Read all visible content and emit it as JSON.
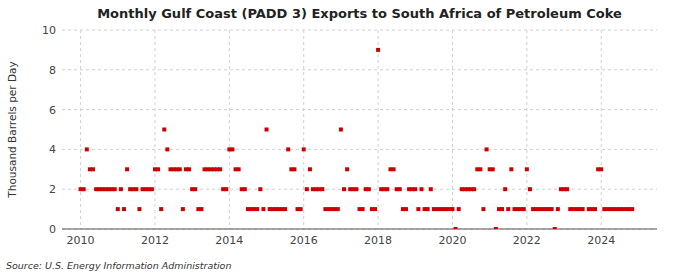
{
  "chart_data": {
    "type": "scatter",
    "title": "Monthly Gulf Coast (PADD 3) Exports to South Africa of Petroleum Coke",
    "ylabel": "Thousand Barrels per Day",
    "source": "Source: U.S. Energy Information Administration",
    "color": "#cc0000",
    "marker": "square",
    "grid": true,
    "xlim": [
      2009.5,
      2025.5
    ],
    "xticks": [
      2010,
      2012,
      2014,
      2016,
      2018,
      2020,
      2022,
      2024
    ],
    "ylim": [
      0,
      10
    ],
    "yticks": [
      0,
      2,
      4,
      6,
      8,
      10
    ],
    "x": [
      2010.0,
      2010.083,
      2010.167,
      2010.25,
      2010.333,
      2010.417,
      2010.5,
      2010.583,
      2010.667,
      2010.75,
      2010.833,
      2010.917,
      2011.0,
      2011.083,
      2011.167,
      2011.25,
      2011.333,
      2011.417,
      2011.5,
      2011.583,
      2011.667,
      2011.75,
      2011.833,
      2011.917,
      2012.0,
      2012.083,
      2012.167,
      2012.25,
      2012.333,
      2012.417,
      2012.5,
      2012.583,
      2012.667,
      2012.75,
      2012.833,
      2012.917,
      2013.0,
      2013.083,
      2013.167,
      2013.25,
      2013.333,
      2013.417,
      2013.5,
      2013.583,
      2013.667,
      2013.75,
      2013.833,
      2013.917,
      2014.0,
      2014.083,
      2014.167,
      2014.25,
      2014.333,
      2014.417,
      2014.5,
      2014.583,
      2014.667,
      2014.75,
      2014.833,
      2014.917,
      2015.0,
      2015.083,
      2015.167,
      2015.25,
      2015.333,
      2015.417,
      2015.5,
      2015.583,
      2015.667,
      2015.75,
      2015.833,
      2015.917,
      2016.0,
      2016.083,
      2016.167,
      2016.25,
      2016.333,
      2016.417,
      2016.5,
      2016.583,
      2016.667,
      2016.75,
      2016.833,
      2016.917,
      2017.0,
      2017.083,
      2017.167,
      2017.25,
      2017.333,
      2017.417,
      2017.5,
      2017.583,
      2017.667,
      2017.75,
      2017.833,
      2017.917,
      2018.0,
      2018.083,
      2018.167,
      2018.25,
      2018.333,
      2018.417,
      2018.5,
      2018.583,
      2018.667,
      2018.75,
      2018.833,
      2018.917,
      2019.0,
      2019.083,
      2019.167,
      2019.25,
      2019.333,
      2019.417,
      2019.5,
      2019.583,
      2019.667,
      2019.75,
      2019.833,
      2019.917,
      2020.0,
      2020.083,
      2020.167,
      2020.25,
      2020.333,
      2020.417,
      2020.5,
      2020.583,
      2020.667,
      2020.75,
      2020.833,
      2020.917,
      2021.0,
      2021.083,
      2021.167,
      2021.25,
      2021.333,
      2021.417,
      2021.5,
      2021.583,
      2021.667,
      2021.75,
      2021.833,
      2021.917,
      2022.0,
      2022.083,
      2022.167,
      2022.25,
      2022.333,
      2022.417,
      2022.5,
      2022.583,
      2022.667,
      2022.75,
      2022.833,
      2022.917,
      2023.0,
      2023.083,
      2023.167,
      2023.25,
      2023.333,
      2023.417,
      2023.5,
      2023.667,
      2023.75,
      2023.833,
      2023.917,
      2024.0,
      2024.083,
      2024.167,
      2024.25,
      2024.333,
      2024.417,
      2024.5,
      2024.583,
      2024.667,
      2024.75,
      2024.833
    ],
    "values": [
      2,
      2,
      4,
      3,
      3,
      2,
      2,
      2,
      2,
      2,
      2,
      2,
      1,
      2,
      1,
      3,
      2,
      2,
      2,
      1,
      2,
      2,
      2,
      2,
      3,
      3,
      1,
      5,
      4,
      3,
      3,
      3,
      3,
      1,
      3,
      3,
      2,
      2,
      1,
      1,
      3,
      3,
      3,
      3,
      3,
      3,
      2,
      2,
      4,
      4,
      3,
      3,
      2,
      2,
      1,
      1,
      1,
      1,
      2,
      1,
      5,
      1,
      1,
      1,
      1,
      1,
      1,
      4,
      3,
      3,
      1,
      1,
      4,
      2,
      3,
      2,
      2,
      2,
      2,
      1,
      1,
      1,
      1,
      1,
      5,
      2,
      3,
      2,
      2,
      2,
      1,
      1,
      2,
      2,
      1,
      1,
      9,
      2,
      2,
      2,
      3,
      3,
      2,
      2,
      1,
      1,
      2,
      2,
      2,
      1,
      2,
      1,
      1,
      2,
      1,
      1,
      1,
      1,
      1,
      1,
      1,
      0,
      1,
      2,
      2,
      2,
      2,
      2,
      3,
      3,
      1,
      4,
      3,
      3,
      0,
      1,
      1,
      2,
      1,
      3,
      1,
      1,
      1,
      1,
      3,
      2,
      1,
      1,
      1,
      1,
      1,
      1,
      1,
      0,
      1,
      2,
      2,
      2,
      1,
      1,
      1,
      1,
      1,
      1,
      1,
      1,
      3,
      3,
      1,
      1,
      1,
      1,
      1,
      1,
      1,
      1,
      1,
      1
    ]
  }
}
